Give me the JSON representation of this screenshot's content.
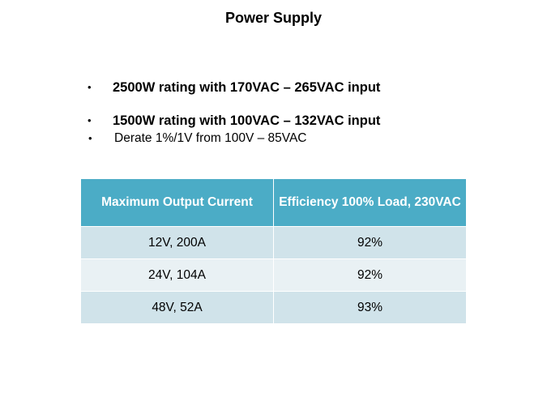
{
  "header": {
    "title": "Power Supply"
  },
  "bullets": [
    {
      "text": "2500W rating with 170VAC – 265VAC input",
      "sub": []
    },
    {
      "text": "1500W rating with 100VAC – 132VAC input",
      "sub": [
        "Derate 1%/1V from 100V – 85VAC"
      ]
    }
  ],
  "table": {
    "headers": [
      "Maximum Output Current",
      "Efficiency 100% Load, 230VAC"
    ],
    "rows": [
      [
        "12V, 200A",
        "92%"
      ],
      [
        "24V, 104A",
        "92%"
      ],
      [
        "48V, 52A",
        "93%"
      ]
    ]
  }
}
